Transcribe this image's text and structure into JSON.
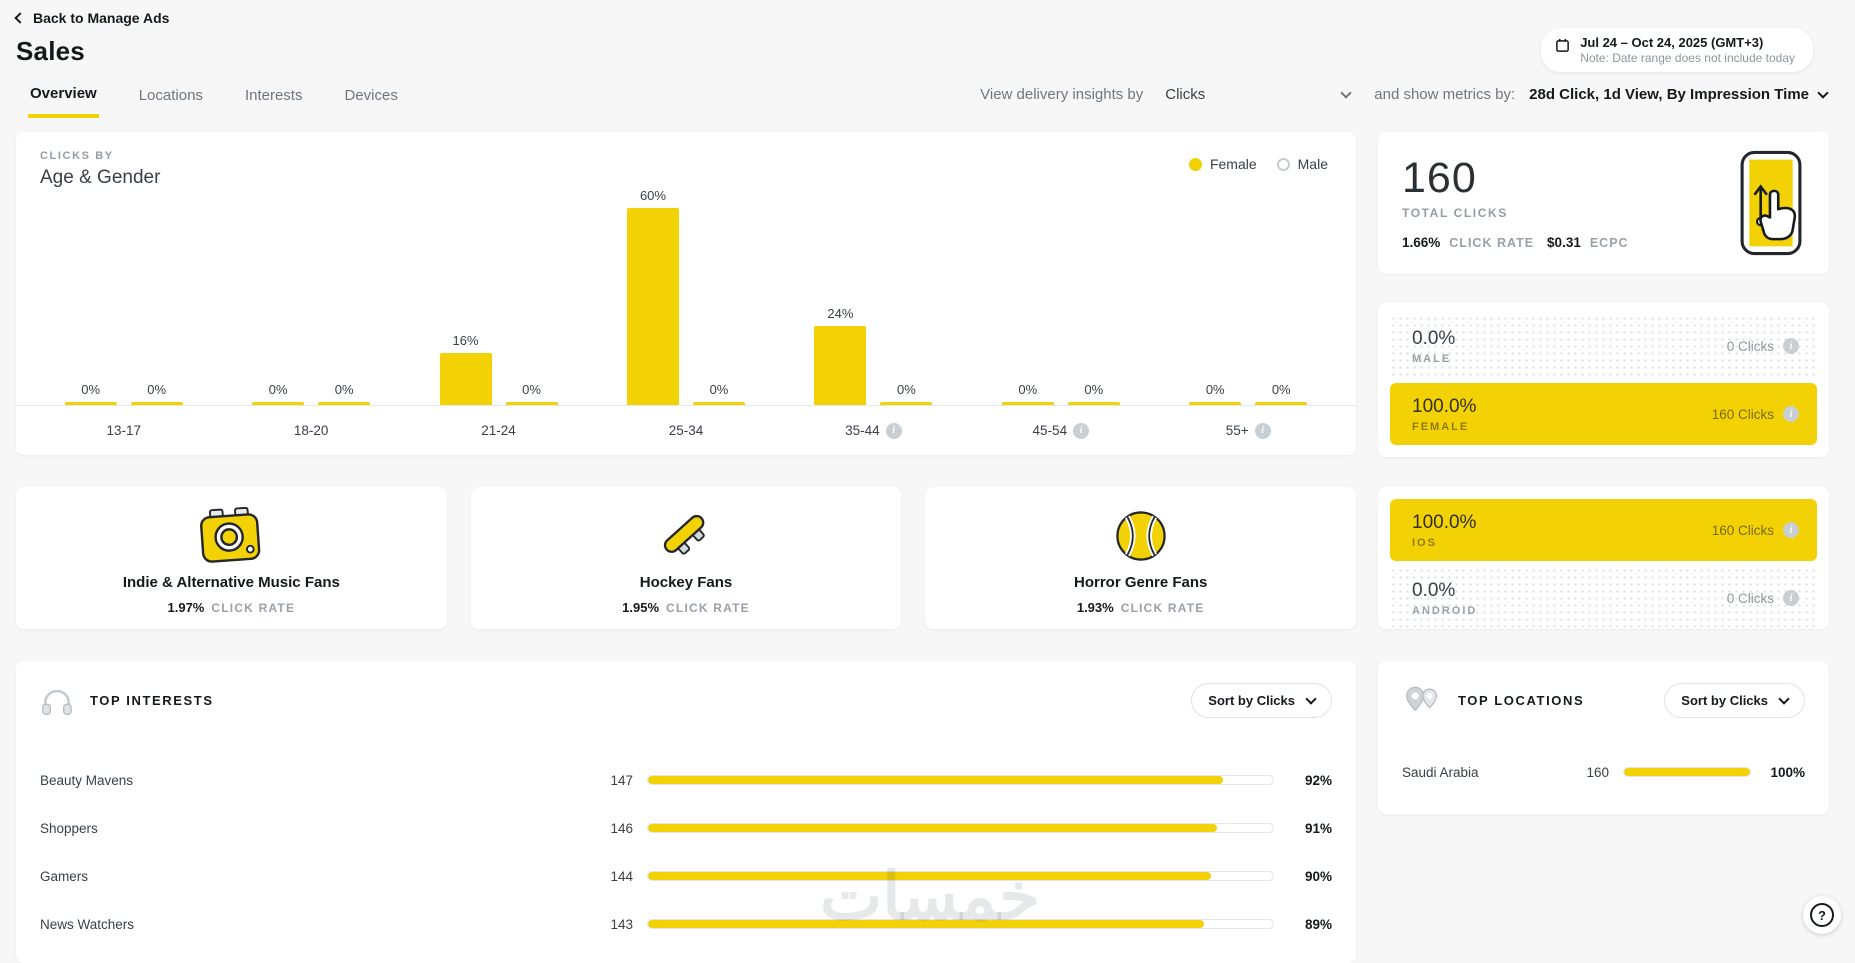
{
  "header": {
    "back_icon": "back-chevron-icon",
    "back_label": "Back to Manage Ads",
    "title": "Sales",
    "date_icon": "calendar-icon",
    "date_range": "Jul 24 – Oct 24, 2025 (GMT+3)",
    "date_note": "Note: Date range does not include today",
    "tabs": [
      {
        "label": "Overview",
        "active": true
      },
      {
        "label": "Locations",
        "active": false
      },
      {
        "label": "Interests",
        "active": false
      },
      {
        "label": "Devices",
        "active": false
      }
    ],
    "insights_by_label": "View delivery insights by",
    "insights_by_value": "Clicks",
    "metrics_by_label": "and show metrics by:",
    "metrics_by_value": "28d Click, 1d View, By Impression Time"
  },
  "colors": {
    "accent": "#f2d205",
    "text_dark": "#16191c",
    "text_gray": "#8f969c",
    "page_bg": "#f7f7f7"
  },
  "chart_data": [
    {
      "id": "age_gender",
      "type": "bar",
      "title_kicker": "CLICKS BY",
      "title": "Age & Gender",
      "categories": [
        "13-17",
        "18-20",
        "21-24",
        "25-34",
        "35-44",
        "45-54",
        "55+"
      ],
      "category_info": [
        false,
        false,
        false,
        false,
        true,
        true,
        true
      ],
      "series": [
        {
          "name": "Female",
          "color": "#f2d205",
          "values": [
            0,
            0,
            16,
            60,
            24,
            0,
            0
          ]
        },
        {
          "name": "Male",
          "color": "#ffffff",
          "values": [
            0,
            0,
            0,
            0,
            0,
            0,
            0
          ]
        }
      ],
      "value_suffix": "%",
      "ylim": [
        0,
        60
      ],
      "grid": false,
      "legend_position": "top-right"
    },
    {
      "id": "top_interests",
      "type": "hbar",
      "title": "TOP INTERESTS",
      "icon": "headphones-icon",
      "sort_label": "Sort by Clicks",
      "rows": [
        {
          "label": "Beauty Mavens",
          "value": 147,
          "pct": 92
        },
        {
          "label": "Shoppers",
          "value": 146,
          "pct": 91
        },
        {
          "label": "Gamers",
          "value": 144,
          "pct": 90
        },
        {
          "label": "News Watchers",
          "value": 143,
          "pct": 89
        }
      ]
    },
    {
      "id": "top_locations",
      "type": "hbar",
      "title": "TOP LOCATIONS",
      "icon": "map-pins-icon",
      "sort_label": "Sort by Clicks",
      "rows": [
        {
          "label": "Saudi Arabia",
          "value": 160,
          "pct": 100
        }
      ]
    }
  ],
  "summary": {
    "total_value": "160",
    "total_label": "TOTAL CLICKS",
    "stat1_value": "1.66%",
    "stat1_label": "CLICK RATE",
    "stat2_value": "$0.31",
    "stat2_label": "ECPC",
    "icon": "phone-swipe-icon"
  },
  "gender_breakdown": {
    "rows": [
      {
        "pct": "0.0%",
        "label": "MALE",
        "clicks": "0 Clicks",
        "highlight": false
      },
      {
        "pct": "100.0%",
        "label": "FEMALE",
        "clicks": "160 Clicks",
        "highlight": true
      }
    ]
  },
  "os_breakdown": {
    "rows": [
      {
        "pct": "100.0%",
        "label": "IOS",
        "clicks": "160 Clicks",
        "highlight": true
      },
      {
        "pct": "0.0%",
        "label": "ANDROID",
        "clicks": "0 Clicks",
        "highlight": false
      }
    ]
  },
  "interest_cards": [
    {
      "icon": "camera-icon",
      "name": "Indie & Alternative Music Fans",
      "rate": "1.97%",
      "rate_label": "CLICK RATE"
    },
    {
      "icon": "skateboard-icon",
      "name": "Hockey Fans",
      "rate": "1.95%",
      "rate_label": "CLICK RATE"
    },
    {
      "icon": "tennis-ball-icon",
      "name": "Horror Genre Fans",
      "rate": "1.93%",
      "rate_label": "CLICK RATE"
    }
  ],
  "watermark": "خمسات",
  "help_label": "?"
}
